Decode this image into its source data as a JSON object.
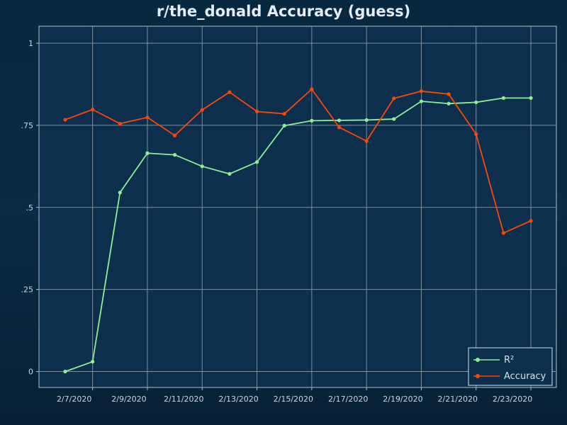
{
  "chart_data": {
    "type": "line",
    "title": "r/the_donald Accuracy (guess)",
    "xlabel": "",
    "ylabel": "",
    "x": [
      "2/6/2020",
      "2/7/2020",
      "2/8/2020",
      "2/9/2020",
      "2/10/2020",
      "2/11/2020",
      "2/12/2020",
      "2/13/2020",
      "2/14/2020",
      "2/15/2020",
      "2/16/2020",
      "2/17/2020",
      "2/18/2020",
      "2/19/2020",
      "2/20/2020",
      "2/21/2020",
      "2/22/2020",
      "2/23/2020"
    ],
    "x_tick_labels": [
      "2/7/2020",
      "2/9/2020",
      "2/11/2020",
      "2/13/2020",
      "2/15/2020",
      "2/17/2020",
      "2/19/2020",
      "2/21/2020",
      "2/23/2020"
    ],
    "y_tick_values": [
      0,
      0.25,
      0.5,
      0.75,
      1
    ],
    "y_tick_labels": [
      "0",
      ".25",
      ".5",
      ".75",
      "1"
    ],
    "ylim": [
      -0.05,
      1.05
    ],
    "grid": true,
    "legend_position": "bottom-right",
    "series": [
      {
        "name": "R²",
        "color": "#90ee90",
        "values": [
          0.0,
          0.03,
          0.545,
          0.665,
          0.66,
          0.625,
          0.602,
          0.638,
          0.749,
          0.764,
          0.765,
          0.766,
          0.769,
          0.823,
          0.816,
          0.82,
          0.833,
          0.833
        ]
      },
      {
        "name": "Accuracy",
        "color": "#ff4500",
        "values": [
          0.767,
          0.798,
          0.755,
          0.774,
          0.719,
          0.797,
          0.851,
          0.792,
          0.785,
          0.86,
          0.744,
          0.702,
          0.832,
          0.854,
          0.845,
          0.723,
          0.422,
          0.459
        ]
      }
    ]
  }
}
